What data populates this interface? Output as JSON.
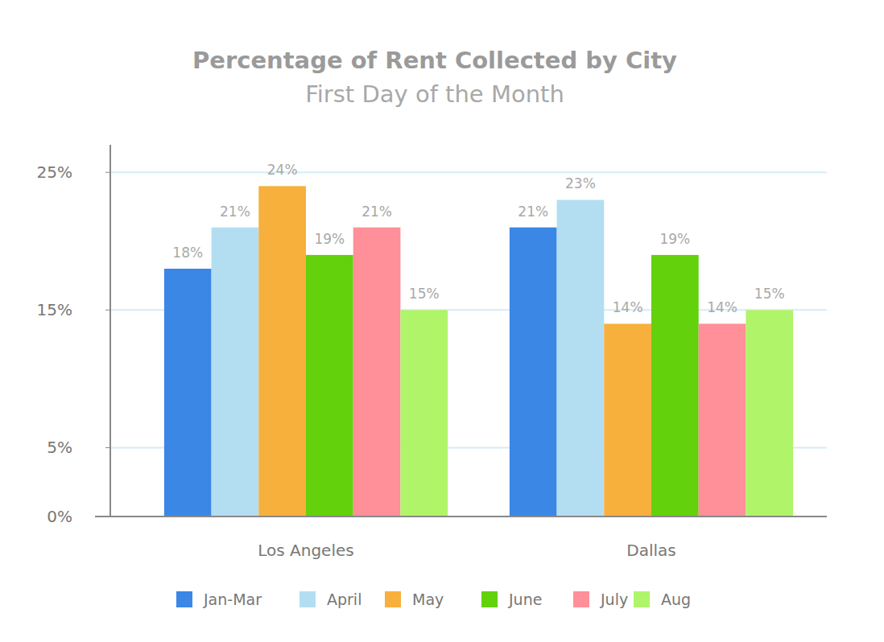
{
  "chart_data": {
    "type": "bar",
    "title": "Percentage of Rent Collected by City",
    "subtitle": "First Day of the Month",
    "categories": [
      "Los Angeles",
      "Dallas"
    ],
    "series": [
      {
        "name": "Jan-Mar",
        "color": "#3a87e6",
        "values": [
          18,
          21
        ],
        "value_labels": [
          "18%",
          "21%"
        ]
      },
      {
        "name": "April",
        "color": "#b3def2",
        "values": [
          21,
          23
        ],
        "value_labels": [
          "21%",
          "23%"
        ]
      },
      {
        "name": "May",
        "color": "#f8b03c",
        "values": [
          24,
          14
        ],
        "value_labels": [
          "24%",
          "14%"
        ]
      },
      {
        "name": "June",
        "color": "#63d10c",
        "values": [
          19,
          19
        ],
        "value_labels": [
          "19%",
          "19%"
        ]
      },
      {
        "name": "July",
        "color": "#ff8f98",
        "values": [
          21,
          14
        ],
        "value_labels": [
          "21%",
          "14%"
        ]
      },
      {
        "name": "Aug",
        "color": "#b0f46a",
        "values": [
          15,
          15
        ],
        "value_labels": [
          "15%",
          "15%"
        ]
      }
    ],
    "ylim": [
      0,
      27
    ],
    "yticks": [
      {
        "value": 0,
        "label": "0%"
      },
      {
        "value": 5,
        "label": "5%"
      },
      {
        "value": 15,
        "label": "15%"
      },
      {
        "value": 25,
        "label": "25%"
      }
    ],
    "grid": true,
    "data_labels": true,
    "legend": "bottom"
  }
}
